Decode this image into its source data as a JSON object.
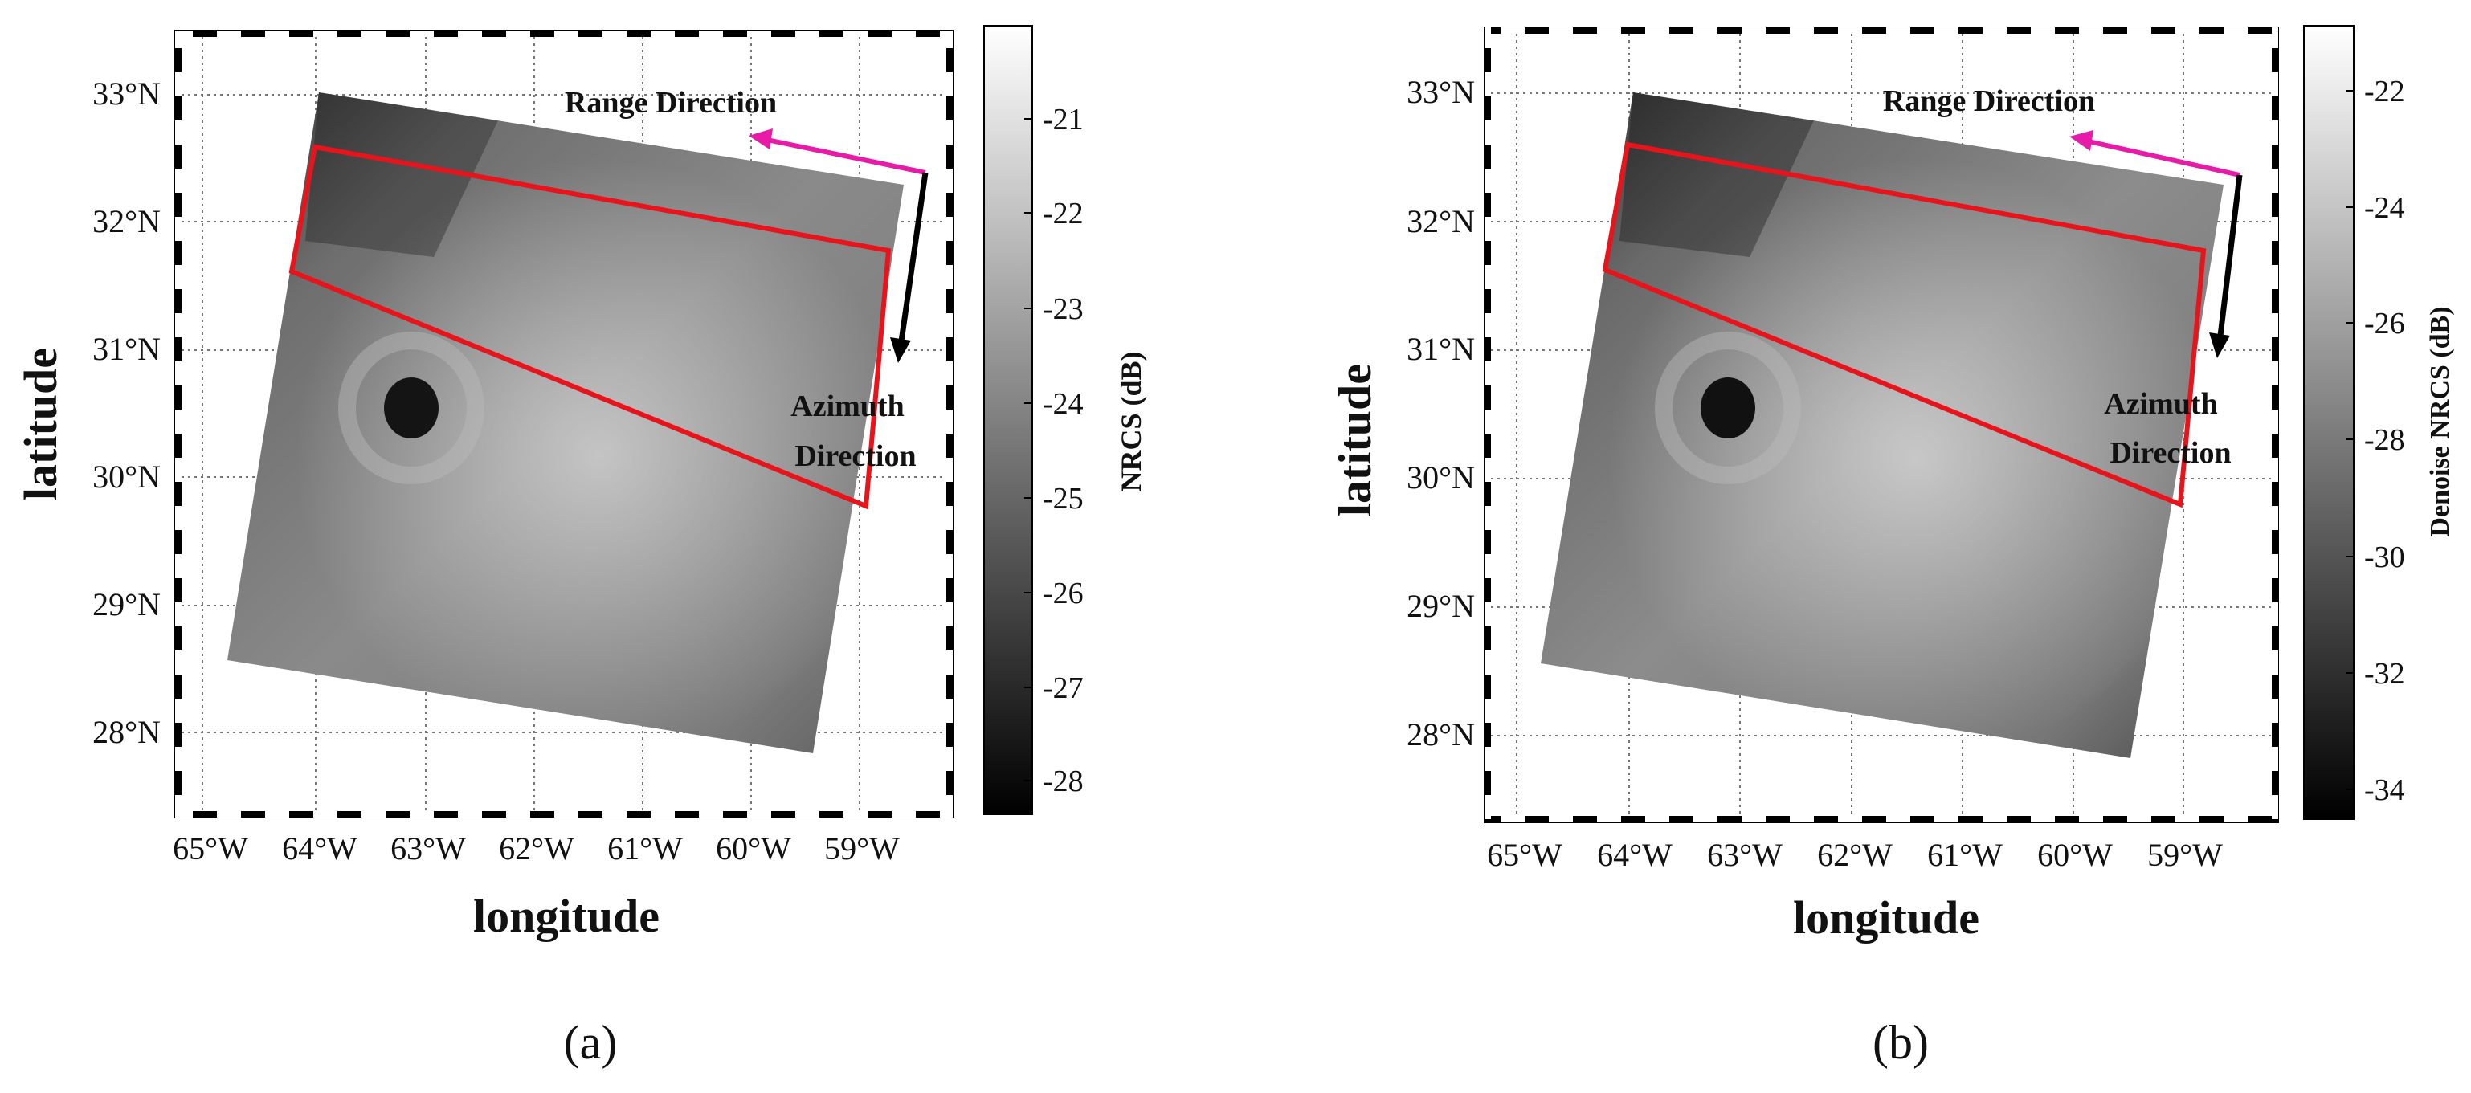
{
  "panels": [
    {
      "id": "a",
      "caption": "(a)",
      "xlabel": "longitude",
      "ylabel": "latitude",
      "lon_ticks": [
        "65°W",
        "64°W",
        "63°W",
        "62°W",
        "61°W",
        "60°W",
        "59°W"
      ],
      "lat_ticks": [
        "33°N",
        "32°N",
        "31°N",
        "30°N",
        "29°N",
        "28°N"
      ],
      "colorbar": {
        "label": "NRCS (dB)",
        "ticks": [
          "-21",
          "-22",
          "-23",
          "-24",
          "-25",
          "-26",
          "-27",
          "-28"
        ]
      },
      "annotations": {
        "range": "Range Direction",
        "azimuth_1": "Azimuth",
        "azimuth_2": "Direction"
      }
    },
    {
      "id": "b",
      "caption": "(b)",
      "xlabel": "longitude",
      "ylabel": "latitude",
      "lon_ticks": [
        "65°W",
        "64°W",
        "63°W",
        "62°W",
        "61°W",
        "60°W",
        "59°W"
      ],
      "lat_ticks": [
        "33°N",
        "32°N",
        "31°N",
        "30°N",
        "29°N",
        "28°N"
      ],
      "colorbar": {
        "label": "Denoise NRCS (dB)",
        "ticks": [
          "-22",
          "-24",
          "-26",
          "-28",
          "-30",
          "-32",
          "-34"
        ]
      },
      "annotations": {
        "range": "Range Direction",
        "azimuth_1": "Azimuth",
        "azimuth_2": "Direction"
      }
    }
  ],
  "colors": {
    "box": "#e8141c",
    "range_arrow": "#e81ba8",
    "azimuth_arrow": "#000000"
  }
}
